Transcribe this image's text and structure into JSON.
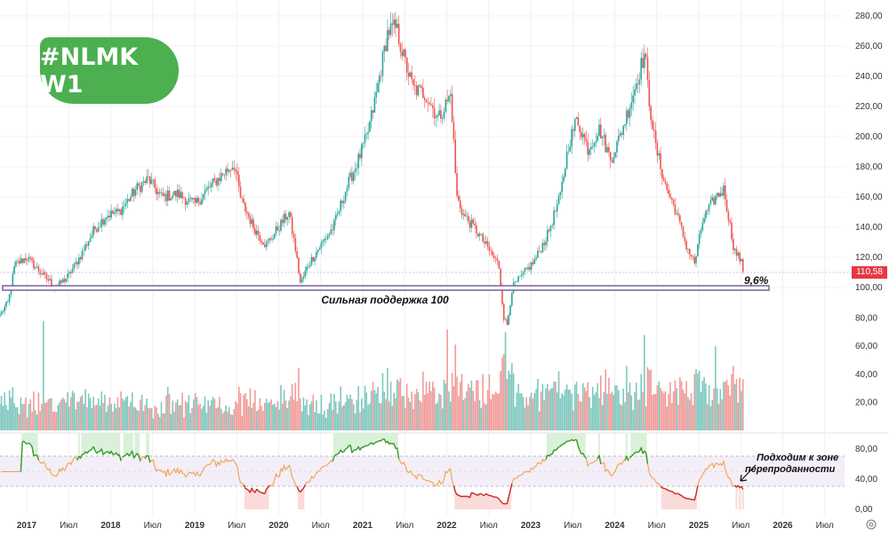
{
  "badge": {
    "title": "#NLMK W1"
  },
  "price_tag": "110,58",
  "annotations": {
    "support": "Сильная поддержка 100",
    "distance": "9,6%",
    "oversold_note_line1": "Подходим к зоне",
    "oversold_note_line2": "перепроданности"
  },
  "colors": {
    "up": "#26a69a",
    "down": "#ef5350",
    "rsi": "#f0a44a",
    "rsi_overbought": "#2ca02c",
    "rsi_oversold": "#c62828",
    "support": "#7b5fa0",
    "badge": "#4caf50"
  },
  "chart_data": {
    "type": "candlestick",
    "timeframe": "W1",
    "price_axis": {
      "ticks": [
        "280,00",
        "260,00",
        "240,00",
        "220,00",
        "200,00",
        "180,00",
        "160,00",
        "140,00",
        "120,00",
        "100,00"
      ],
      "range": [
        80,
        285
      ]
    },
    "volume_axis": {
      "ticks": [
        "80,00",
        "60,00",
        "40,00",
        "20,00"
      ],
      "range": [
        0,
        80
      ]
    },
    "rsi_axis": {
      "ticks": [
        "80,00",
        "40,00",
        "0,00"
      ],
      "range": [
        0,
        100
      ],
      "bands": [
        30,
        70
      ]
    },
    "x_ticks": [
      "2017",
      "Июл",
      "2018",
      "Июл",
      "2019",
      "Июл",
      "2020",
      "Июл",
      "2021",
      "Июл",
      "2022",
      "Июл",
      "2023",
      "Июл",
      "2024",
      "Июл",
      "2025",
      "Июл",
      "2026",
      "Июл"
    ],
    "x_range": [
      2016.68,
      2026.8
    ],
    "last_price": 110.58,
    "support_level": 100,
    "price_path": [
      [
        2016.68,
        82
      ],
      [
        2016.78,
        90
      ],
      [
        2016.86,
        115
      ],
      [
        2017.0,
        120
      ],
      [
        2017.2,
        108
      ],
      [
        2017.35,
        100
      ],
      [
        2017.5,
        108
      ],
      [
        2017.65,
        122
      ],
      [
        2017.8,
        138
      ],
      [
        2017.95,
        148
      ],
      [
        2018.1,
        150
      ],
      [
        2018.3,
        165
      ],
      [
        2018.45,
        172
      ],
      [
        2018.6,
        160
      ],
      [
        2018.8,
        162
      ],
      [
        2019.0,
        155
      ],
      [
        2019.2,
        168
      ],
      [
        2019.35,
        176
      ],
      [
        2019.47,
        182
      ],
      [
        2019.55,
        158
      ],
      [
        2019.7,
        140
      ],
      [
        2019.85,
        128
      ],
      [
        2020.0,
        140
      ],
      [
        2020.12,
        150
      ],
      [
        2020.2,
        125
      ],
      [
        2020.26,
        102
      ],
      [
        2020.35,
        115
      ],
      [
        2020.5,
        128
      ],
      [
        2020.65,
        140
      ],
      [
        2020.8,
        165
      ],
      [
        2020.95,
        185
      ],
      [
        2021.05,
        200
      ],
      [
        2021.15,
        225
      ],
      [
        2021.3,
        270
      ],
      [
        2021.4,
        272
      ],
      [
        2021.5,
        250
      ],
      [
        2021.6,
        232
      ],
      [
        2021.75,
        228
      ],
      [
        2021.9,
        212
      ],
      [
        2022.05,
        228
      ],
      [
        2022.12,
        160
      ],
      [
        2022.2,
        148
      ],
      [
        2022.35,
        138
      ],
      [
        2022.5,
        125
      ],
      [
        2022.62,
        115
      ],
      [
        2022.68,
        80
      ],
      [
        2022.72,
        75
      ],
      [
        2022.78,
        100
      ],
      [
        2022.9,
        108
      ],
      [
        2023.05,
        118
      ],
      [
        2023.2,
        135
      ],
      [
        2023.35,
        160
      ],
      [
        2023.45,
        195
      ],
      [
        2023.55,
        212
      ],
      [
        2023.68,
        192
      ],
      [
        2023.82,
        205
      ],
      [
        2023.95,
        185
      ],
      [
        2024.05,
        198
      ],
      [
        2024.2,
        225
      ],
      [
        2024.36,
        256
      ],
      [
        2024.4,
        228
      ],
      [
        2024.48,
        195
      ],
      [
        2024.6,
        168
      ],
      [
        2024.72,
        152
      ],
      [
        2024.85,
        128
      ],
      [
        2024.95,
        116
      ],
      [
        2025.05,
        145
      ],
      [
        2025.2,
        160
      ],
      [
        2025.3,
        165
      ],
      [
        2025.35,
        148
      ],
      [
        2025.42,
        125
      ],
      [
        2025.5,
        118
      ],
      [
        2025.53,
        110.58
      ]
    ],
    "volume_spikes": [
      [
        2017.2,
        78
      ],
      [
        2022.0,
        72
      ],
      [
        2022.7,
        70
      ],
      [
        2024.35,
        68
      ],
      [
        2025.2,
        60
      ]
    ]
  }
}
